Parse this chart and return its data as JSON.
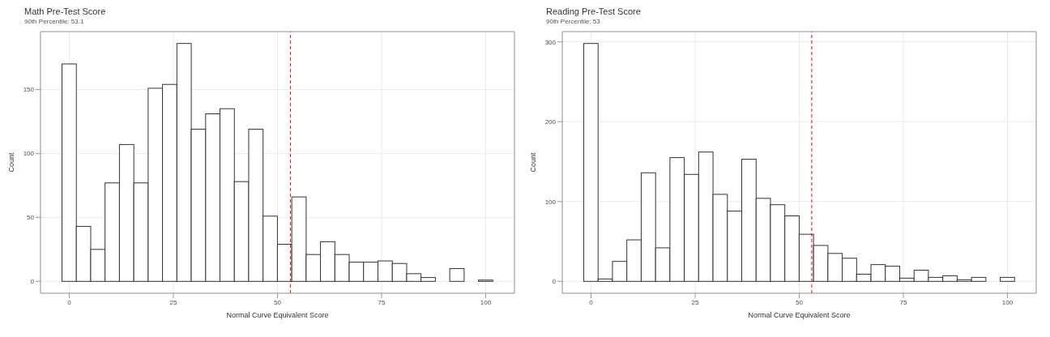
{
  "chart_data": [
    {
      "type": "histogram",
      "title": "Math Pre-Test Score",
      "subtitle": "90th Percentile: 53.1",
      "xlabel": "Normal Curve Equivalent Score",
      "ylabel": "Count",
      "bins": [
        -1.72,
        1.72,
        5.17,
        8.62,
        12.07,
        15.52,
        18.97,
        22.41,
        25.86,
        29.31,
        32.76,
        36.21,
        39.66,
        43.1,
        46.55,
        50,
        53.45,
        56.9,
        60.34,
        63.79,
        67.24,
        70.69,
        74.14,
        77.59,
        81.03,
        84.48,
        87.93,
        91.38,
        94.83,
        98.28,
        101.72
      ],
      "values": [
        170,
        43,
        25,
        77,
        107,
        77,
        151,
        154,
        186,
        119,
        131,
        135,
        78,
        119,
        51,
        29,
        66,
        21,
        31,
        21,
        15,
        15,
        16,
        14,
        6,
        3,
        0,
        10,
        0,
        1
      ],
      "color": "#ffffff",
      "xlim": [
        -6.9,
        106.9
      ],
      "xticks": [
        0,
        25,
        50,
        75,
        100
      ],
      "ylim": [
        -9.3,
        195.3
      ],
      "yticks": [
        0,
        50,
        100,
        150
      ],
      "grid": true,
      "ref_lines": [
        {
          "axis": "x",
          "value": 53.1,
          "color": "#ff0000",
          "line_style": "dashed"
        }
      ]
    },
    {
      "type": "histogram",
      "title": "Reading Pre-Test Score",
      "subtitle": "90th Percentile: 53",
      "xlabel": "Normal Curve Equivalent Score",
      "ylabel": "Count",
      "bins": [
        -1.72,
        1.72,
        5.17,
        8.62,
        12.07,
        15.52,
        18.97,
        22.41,
        25.86,
        29.31,
        32.76,
        36.21,
        39.66,
        43.1,
        46.55,
        50,
        53.45,
        56.9,
        60.34,
        63.79,
        67.24,
        70.69,
        74.14,
        77.59,
        81.03,
        84.48,
        87.93,
        91.38,
        94.83,
        98.28,
        101.72
      ],
      "values": [
        298,
        3,
        25,
        52,
        136,
        42,
        155,
        134,
        162,
        109,
        88,
        153,
        104,
        96,
        82,
        59,
        45,
        35,
        29,
        9,
        21,
        19,
        4,
        14,
        5,
        7,
        2,
        5,
        0,
        5
      ],
      "color": "#ffffff",
      "xlim": [
        -6.9,
        106.9
      ],
      "xticks": [
        0,
        25,
        50,
        75,
        100
      ],
      "ylim": [
        -14.9,
        312.9
      ],
      "yticks": [
        0,
        100,
        200,
        300
      ],
      "grid": true,
      "ref_lines": [
        {
          "axis": "x",
          "value": 53,
          "color": "#ff0000",
          "line_style": "dashed"
        }
      ]
    }
  ]
}
